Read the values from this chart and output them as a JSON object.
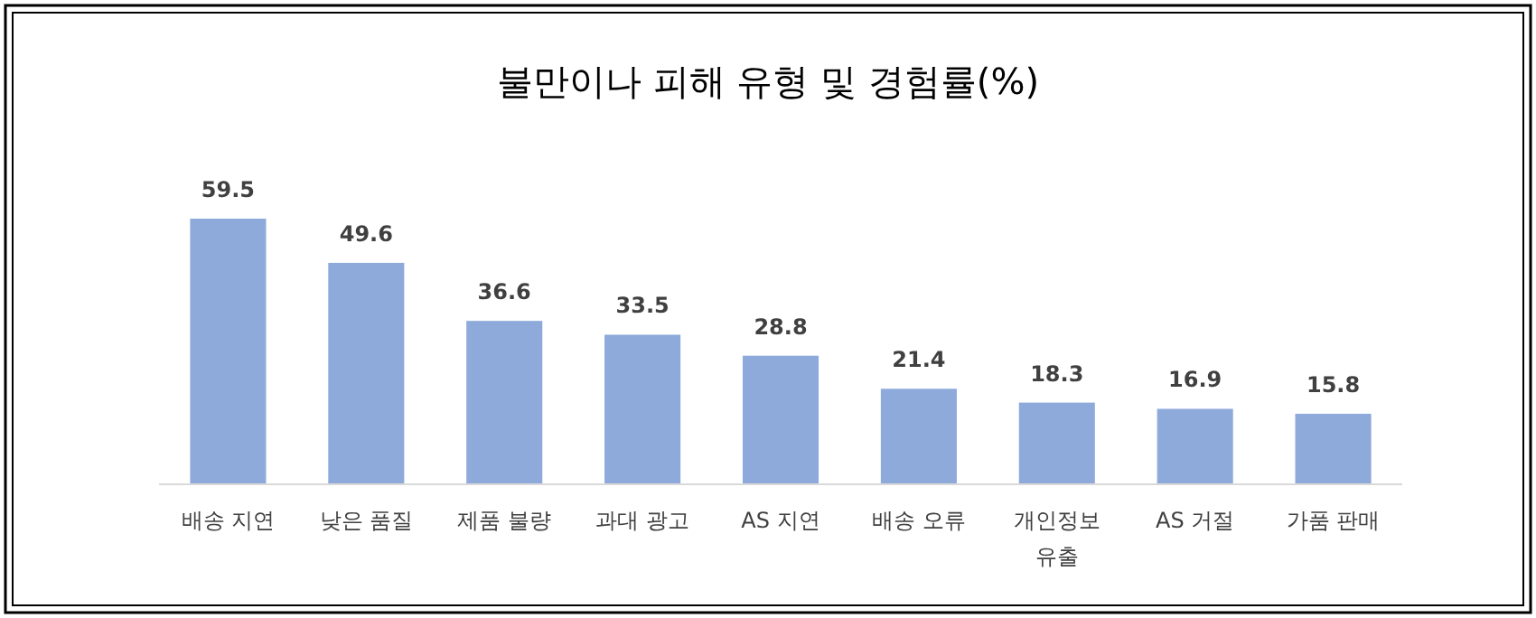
{
  "chart_data": {
    "type": "bar",
    "title": "불만이나 피해 유형 및 경험률(%)",
    "categories": [
      "배송 지연",
      "낮은 품질",
      "제품 불량",
      "과대 광고",
      "AS 지연",
      "배송 오류",
      "개인정보 유출",
      "AS 거절",
      "가품 판매"
    ],
    "values": [
      59.5,
      49.6,
      36.6,
      33.5,
      28.8,
      21.4,
      18.3,
      16.9,
      15.8
    ],
    "color": "#8eaadb",
    "data_labels": true
  }
}
